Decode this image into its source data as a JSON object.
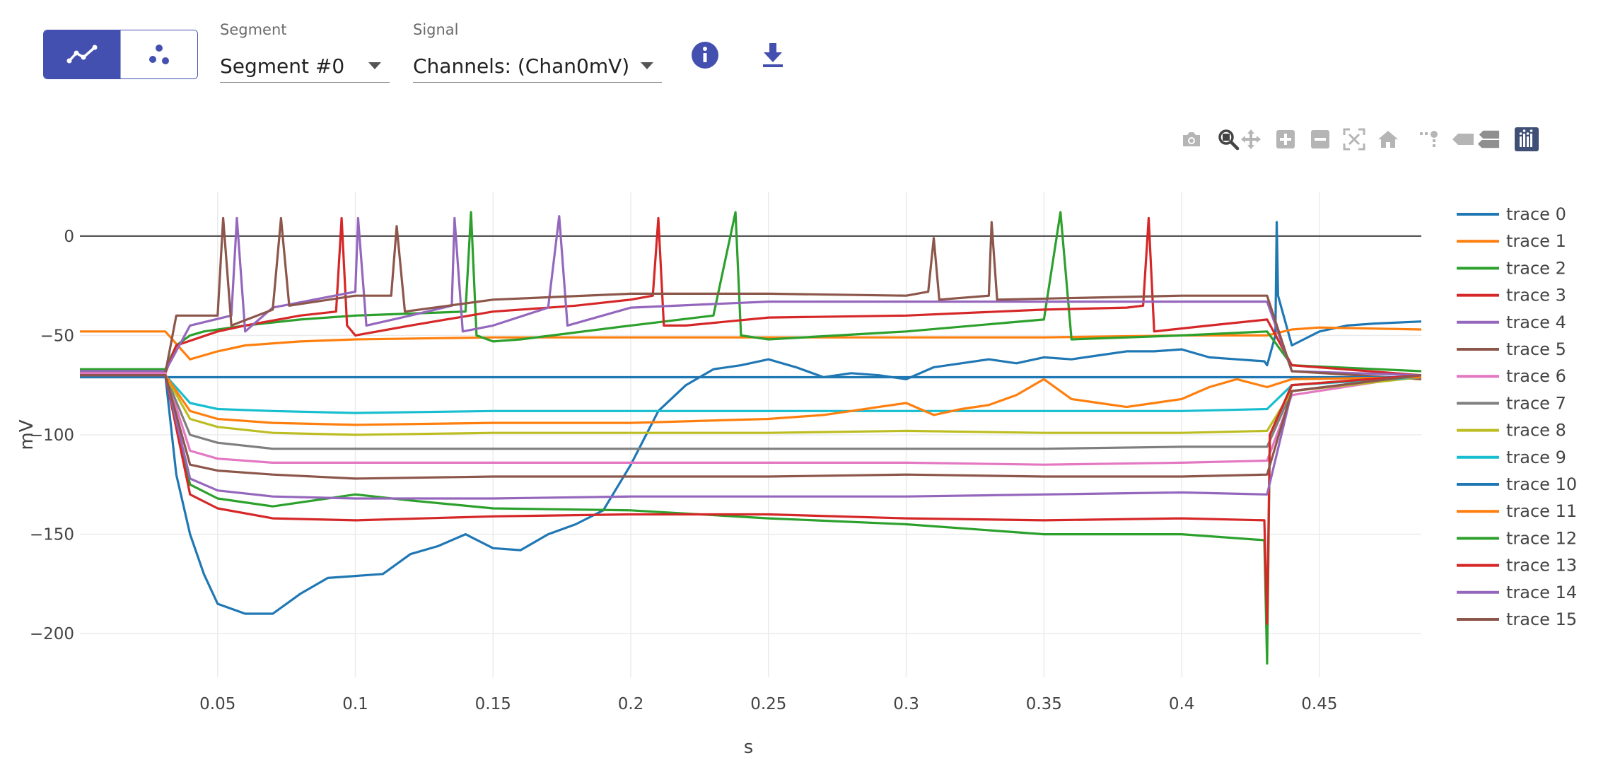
{
  "toolbar": {
    "view_modes": [
      {
        "name": "line-view",
        "icon": "line-chart-icon",
        "active": true
      },
      {
        "name": "scatter-view",
        "icon": "scatter-icon",
        "active": false
      }
    ],
    "segment": {
      "label": "Segment",
      "value": "Segment #0"
    },
    "signal": {
      "label": "Signal",
      "value": "Channels: (Chan0mV)"
    },
    "info_icon": "info-icon",
    "download_icon": "download-icon",
    "accent": "#4350af"
  },
  "modebar": [
    "camera-icon",
    "zoom-icon",
    "pan-icon",
    "zoom-in-icon",
    "zoom-out-icon",
    "autoscale-icon",
    "reset-axes-icon",
    "spike-lines-icon",
    "hover-closest-icon",
    "hover-compare-icon",
    "plotly-logo-icon"
  ],
  "chart_data": {
    "type": "line",
    "xlabel": "s",
    "ylabel": "mV",
    "xlim": [
      0.0,
      0.487
    ],
    "ylim": [
      -222,
      22
    ],
    "xticks": [
      0.05,
      0.1,
      0.15,
      0.2,
      0.25,
      0.3,
      0.35,
      0.4,
      0.45
    ],
    "xtick_labels": [
      "0.05",
      "0.1",
      "0.15",
      "0.2",
      "0.25",
      "0.3",
      "0.35",
      "0.4",
      "0.45"
    ],
    "yticks": [
      0,
      -50,
      -100,
      -150,
      -200
    ],
    "ytick_labels": [
      "0",
      "−50",
      "−100",
      "−150",
      "−200"
    ],
    "grid": true,
    "legend_position": "right",
    "series": [
      {
        "name": "trace 0",
        "color": "#1f77b4",
        "x": [
          0.0,
          0.031,
          0.035,
          0.04,
          0.045,
          0.05,
          0.06,
          0.07,
          0.08,
          0.09,
          0.1,
          0.11,
          0.12,
          0.13,
          0.14,
          0.15,
          0.16,
          0.17,
          0.18,
          0.19,
          0.2,
          0.21,
          0.22,
          0.23,
          0.24,
          0.25,
          0.26,
          0.27,
          0.28,
          0.29,
          0.3,
          0.31,
          0.32,
          0.33,
          0.34,
          0.35,
          0.36,
          0.37,
          0.38,
          0.39,
          0.4,
          0.41,
          0.42,
          0.43,
          0.431,
          0.434,
          0.4345,
          0.435,
          0.44,
          0.45,
          0.46,
          0.47,
          0.487
        ],
        "y": [
          -70,
          -70,
          -120,
          -150,
          -170,
          -185,
          -190,
          -190,
          -180,
          -172,
          -171,
          -170,
          -160,
          -156,
          -150,
          -157,
          -158,
          -150,
          -145,
          -138,
          -115,
          -88,
          -75,
          -67,
          -65,
          -62,
          -66,
          -71,
          -69,
          -70,
          -72,
          -66,
          -64,
          -62,
          -64,
          -61,
          -62,
          -60,
          -58,
          -58,
          -57,
          -61,
          -62,
          -63,
          -65,
          -50,
          7,
          -30,
          -55,
          -48,
          -45,
          -44,
          -43
        ]
      },
      {
        "name": "trace 1",
        "color": "#ff7f0e",
        "x": [
          0.0,
          0.031,
          0.04,
          0.05,
          0.06,
          0.08,
          0.1,
          0.15,
          0.2,
          0.25,
          0.3,
          0.35,
          0.4,
          0.431,
          0.44,
          0.45,
          0.487
        ],
        "y": [
          -48,
          -48,
          -62,
          -58,
          -55,
          -53,
          -52,
          -51,
          -51,
          -51,
          -51,
          -51,
          -50,
          -50,
          -47,
          -46,
          -47
        ]
      },
      {
        "name": "trace 2",
        "color": "#2ca02c",
        "x": [
          0.0,
          0.031,
          0.035,
          0.04,
          0.045,
          0.06,
          0.08,
          0.1,
          0.12,
          0.14,
          0.142,
          0.144,
          0.15,
          0.16,
          0.2,
          0.23,
          0.238,
          0.24,
          0.25,
          0.3,
          0.35,
          0.356,
          0.36,
          0.4,
          0.431,
          0.44,
          0.487
        ],
        "y": [
          -67,
          -67,
          -55,
          -50,
          -48,
          -45,
          -42,
          -40,
          -39,
          -38,
          12,
          -50,
          -53,
          -52,
          -45,
          -40,
          12,
          -50,
          -52,
          -48,
          -42,
          12,
          -52,
          -50,
          -48,
          -65,
          -68
        ]
      },
      {
        "name": "trace 3",
        "color": "#d62728",
        "x": [
          0.0,
          0.031,
          0.035,
          0.05,
          0.06,
          0.08,
          0.093,
          0.095,
          0.097,
          0.1,
          0.12,
          0.15,
          0.18,
          0.2,
          0.208,
          0.21,
          0.212,
          0.22,
          0.25,
          0.3,
          0.35,
          0.38,
          0.386,
          0.388,
          0.39,
          0.41,
          0.431,
          0.44,
          0.487
        ],
        "y": [
          -69,
          -69,
          -55,
          -48,
          -45,
          -40,
          -38,
          9,
          -45,
          -50,
          -45,
          -38,
          -35,
          -32,
          -30,
          9,
          -45,
          -45,
          -41,
          -40,
          -37,
          -36,
          -35,
          9,
          -48,
          -45,
          -42,
          -65,
          -70
        ]
      },
      {
        "name": "trace 4",
        "color": "#9467bd",
        "x": [
          0.0,
          0.031,
          0.04,
          0.055,
          0.057,
          0.06,
          0.07,
          0.1,
          0.101,
          0.104,
          0.12,
          0.135,
          0.136,
          0.139,
          0.15,
          0.17,
          0.174,
          0.177,
          0.2,
          0.25,
          0.3,
          0.35,
          0.4,
          0.431,
          0.44,
          0.487
        ],
        "y": [
          -68,
          -68,
          -45,
          -40,
          9,
          -48,
          -36,
          -28,
          9,
          -45,
          -40,
          -35,
          9,
          -48,
          -45,
          -36,
          10,
          -45,
          -36,
          -33,
          -33,
          -33,
          -33,
          -33,
          -68,
          -70
        ]
      },
      {
        "name": "trace 5",
        "color": "#8c564b",
        "x": [
          0.0,
          0.031,
          0.035,
          0.05,
          0.052,
          0.055,
          0.07,
          0.073,
          0.076,
          0.1,
          0.113,
          0.115,
          0.118,
          0.15,
          0.2,
          0.25,
          0.3,
          0.308,
          0.31,
          0.312,
          0.33,
          0.331,
          0.333,
          0.4,
          0.431,
          0.44,
          0.487
        ],
        "y": [
          -69,
          -69,
          -40,
          -40,
          9,
          -45,
          -37,
          9,
          -35,
          -30,
          -30,
          5,
          -38,
          -32,
          -29,
          -29,
          -30,
          -28,
          -1,
          -32,
          -30,
          7,
          -32,
          -30,
          -30,
          -68,
          -72
        ]
      },
      {
        "name": "trace 6",
        "color": "#e377c2",
        "x": [
          0.0,
          0.031,
          0.04,
          0.05,
          0.07,
          0.1,
          0.15,
          0.2,
          0.25,
          0.3,
          0.35,
          0.4,
          0.431,
          0.44,
          0.487
        ],
        "y": [
          -69,
          -69,
          -108,
          -112,
          -114,
          -114,
          -114,
          -114,
          -114,
          -114,
          -115,
          -114,
          -113,
          -80,
          -70
        ]
      },
      {
        "name": "trace 7",
        "color": "#7f7f7f",
        "x": [
          0.0,
          0.031,
          0.04,
          0.05,
          0.07,
          0.1,
          0.15,
          0.2,
          0.25,
          0.3,
          0.35,
          0.4,
          0.431,
          0.44,
          0.487
        ],
        "y": [
          -70,
          -70,
          -100,
          -104,
          -107,
          -107,
          -107,
          -107,
          -107,
          -107,
          -107,
          -106,
          -106,
          -78,
          -70
        ]
      },
      {
        "name": "trace 8",
        "color": "#bcbd22",
        "x": [
          0.0,
          0.031,
          0.04,
          0.05,
          0.07,
          0.1,
          0.15,
          0.2,
          0.25,
          0.3,
          0.35,
          0.4,
          0.431,
          0.44,
          0.487
        ],
        "y": [
          -70,
          -70,
          -92,
          -96,
          -99,
          -100,
          -99,
          -99,
          -99,
          -98,
          -99,
          -99,
          -98,
          -78,
          -71
        ]
      },
      {
        "name": "trace 9",
        "color": "#17becf",
        "x": [
          0.0,
          0.031,
          0.04,
          0.05,
          0.07,
          0.1,
          0.15,
          0.2,
          0.25,
          0.3,
          0.35,
          0.4,
          0.431,
          0.44,
          0.487
        ],
        "y": [
          -70,
          -70,
          -84,
          -87,
          -88,
          -89,
          -88,
          -88,
          -88,
          -88,
          -88,
          -88,
          -87,
          -75,
          -71
        ]
      },
      {
        "name": "trace 10",
        "color": "#1f77b4",
        "x": [
          0.0,
          0.05,
          0.1,
          0.15,
          0.2,
          0.25,
          0.3,
          0.35,
          0.4,
          0.45,
          0.487
        ],
        "y": [
          -71,
          -71,
          -71,
          -71,
          -71,
          -71,
          -71,
          -71,
          -71,
          -71,
          -71
        ]
      },
      {
        "name": "trace 11",
        "color": "#ff7f0e",
        "x": [
          0.0,
          0.031,
          0.04,
          0.05,
          0.07,
          0.1,
          0.15,
          0.2,
          0.25,
          0.27,
          0.28,
          0.29,
          0.3,
          0.31,
          0.32,
          0.33,
          0.34,
          0.35,
          0.36,
          0.37,
          0.38,
          0.39,
          0.4,
          0.41,
          0.42,
          0.431,
          0.44,
          0.487
        ],
        "y": [
          -70,
          -70,
          -88,
          -92,
          -94,
          -95,
          -94,
          -94,
          -92,
          -90,
          -88,
          -86,
          -84,
          -90,
          -87,
          -85,
          -80,
          -72,
          -82,
          -84,
          -86,
          -84,
          -82,
          -76,
          -72,
          -76,
          -72,
          -71
        ]
      },
      {
        "name": "trace 12",
        "color": "#2ca02c",
        "x": [
          0.0,
          0.031,
          0.04,
          0.05,
          0.07,
          0.1,
          0.12,
          0.15,
          0.2,
          0.25,
          0.3,
          0.35,
          0.4,
          0.43,
          0.431,
          0.432,
          0.44,
          0.487
        ],
        "y": [
          -70,
          -70,
          -125,
          -132,
          -136,
          -130,
          -133,
          -137,
          -138,
          -142,
          -145,
          -150,
          -150,
          -153,
          -215,
          -100,
          -75,
          -70
        ]
      },
      {
        "name": "trace 13",
        "color": "#d62728",
        "x": [
          0.0,
          0.031,
          0.04,
          0.05,
          0.07,
          0.1,
          0.15,
          0.2,
          0.25,
          0.3,
          0.35,
          0.4,
          0.43,
          0.431,
          0.432,
          0.44,
          0.487
        ],
        "y": [
          -70,
          -70,
          -130,
          -137,
          -142,
          -143,
          -141,
          -140,
          -140,
          -142,
          -143,
          -142,
          -143,
          -195,
          -100,
          -75,
          -70
        ]
      },
      {
        "name": "trace 14",
        "color": "#9467bd",
        "x": [
          0.0,
          0.031,
          0.04,
          0.05,
          0.07,
          0.1,
          0.15,
          0.2,
          0.25,
          0.3,
          0.35,
          0.4,
          0.431,
          0.44,
          0.487
        ],
        "y": [
          -70,
          -70,
          -122,
          -128,
          -131,
          -132,
          -132,
          -131,
          -131,
          -131,
          -130,
          -129,
          -130,
          -78,
          -70
        ]
      },
      {
        "name": "trace 15",
        "color": "#8c564b",
        "x": [
          0.0,
          0.031,
          0.04,
          0.05,
          0.07,
          0.1,
          0.15,
          0.2,
          0.25,
          0.3,
          0.35,
          0.4,
          0.431,
          0.44,
          0.487
        ],
        "y": [
          -70,
          -70,
          -115,
          -118,
          -120,
          -122,
          -121,
          -121,
          -121,
          -120,
          -121,
          -121,
          -120,
          -78,
          -70
        ]
      }
    ]
  }
}
